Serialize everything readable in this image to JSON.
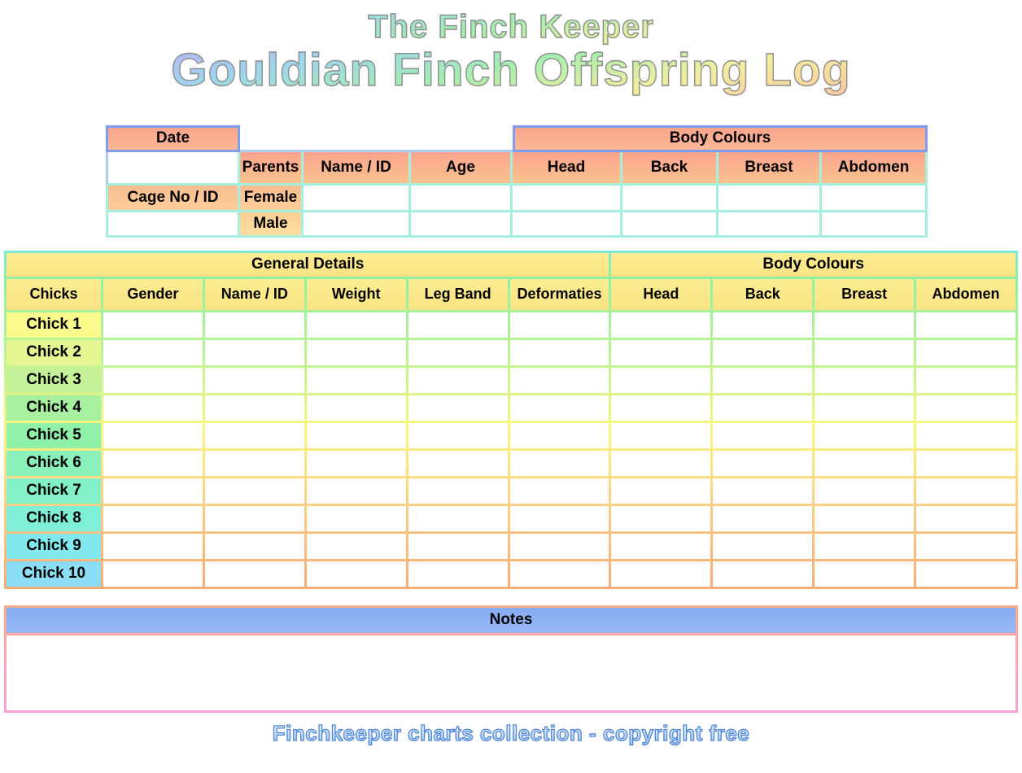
{
  "page": {
    "title_line1": "The Finch Keeper",
    "title_line2": "Gouldian Finch Offspring Log",
    "footer_credit": "Finchkeeper charts collection - copyright free"
  },
  "parents_table": {
    "date_label": "Date",
    "body_colours_label": "Body Colours",
    "cage_label": "Cage No / ID",
    "col_headers": [
      "Parents",
      "Name / ID",
      "Age",
      "Head",
      "Back",
      "Breast",
      "Abdomen"
    ],
    "row_labels": [
      "Female",
      "Male"
    ]
  },
  "offspring_table": {
    "general_details_label": "General Details",
    "body_colours_label": "Body Colours",
    "col_headers": [
      "Chicks",
      "Gender",
      "Name / ID",
      "Weight",
      "Leg Band",
      "Deformaties",
      "Head",
      "Back",
      "Breast",
      "Abdomen"
    ],
    "rows": [
      {
        "label": "Chick 1",
        "color": "#fbfa8c"
      },
      {
        "label": "Chick 2",
        "color": "#e3f691"
      },
      {
        "label": "Chick 3",
        "color": "#c5f298"
      },
      {
        "label": "Chick 4",
        "color": "#a7f0a0"
      },
      {
        "label": "Chick 5",
        "color": "#8ff0a8"
      },
      {
        "label": "Chick 6",
        "color": "#88f0b8"
      },
      {
        "label": "Chick 7",
        "color": "#84f0c8"
      },
      {
        "label": "Chick 8",
        "color": "#80efd8"
      },
      {
        "label": "Chick 9",
        "color": "#81e9ee"
      },
      {
        "label": "Chick 10",
        "color": "#8cdef7"
      }
    ]
  },
  "notes": {
    "label": "Notes"
  },
  "colors": {
    "border_blue": "#7e9def",
    "border_lightblue": "#abcbf4",
    "border_aqua": "#a6efe0",
    "header_salmon_top": "#fba48d",
    "header_salmon_bottom": "#fcb897",
    "header_salmon2_bottom": "#fbc28f",
    "header_peach_top": "#fbbd90",
    "header_peach_bottom": "#fcce9a",
    "male_top": "#fcd094",
    "male_bottom": "#fcdda0",
    "header_yellow_top": "#fcee92",
    "header_yellow_bottom": "#f9e384",
    "grid_aqua": "#7ee9dc",
    "grid_green": "#8df0a2",
    "grid_yellow": "#f7f77e",
    "grid_orange": "#f9ab76",
    "notes_bar_top": "#86abf3",
    "notes_bar_bottom": "#98b9f8",
    "notes_border_top": "#fbab8e",
    "notes_border_bottom": "#faa2d8",
    "title_stroke": "#8f8f8f",
    "footer_stroke": "#4f86d8"
  }
}
